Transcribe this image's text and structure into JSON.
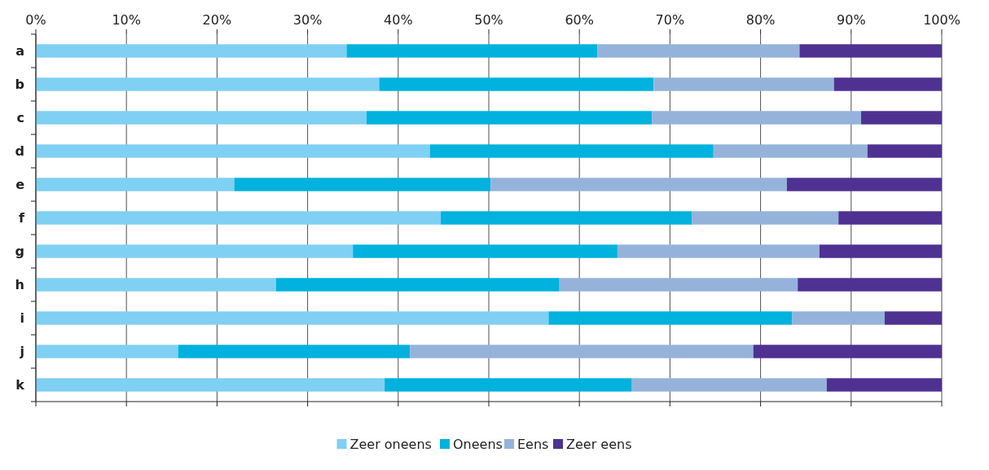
{
  "chart_data": {
    "type": "bar",
    "orientation": "horizontal",
    "stacked": true,
    "categories": [
      "a",
      "b",
      "c",
      "d",
      "e",
      "f",
      "g",
      "h",
      "i",
      "j",
      "k"
    ],
    "series": [
      {
        "name": "Zeer oneens",
        "color": "#7fd0f3",
        "values": [
          34.3,
          37.9,
          36.5,
          43.5,
          21.9,
          44.7,
          35.0,
          26.5,
          56.6,
          15.7,
          38.5
        ]
      },
      {
        "name": "Oneens",
        "color": "#00b2dd",
        "values": [
          27.7,
          30.3,
          31.5,
          31.3,
          28.3,
          27.7,
          29.2,
          31.3,
          26.9,
          25.6,
          27.3
        ]
      },
      {
        "name": "Eens",
        "color": "#95b3da",
        "values": [
          22.3,
          19.9,
          23.1,
          17.0,
          32.7,
          16.2,
          22.3,
          26.3,
          10.2,
          37.9,
          21.5
        ]
      },
      {
        "name": "Zeer eens",
        "color": "#4f3192",
        "values": [
          15.7,
          11.9,
          8.9,
          8.2,
          17.1,
          11.4,
          13.5,
          15.9,
          6.3,
          20.8,
          12.7
        ]
      }
    ],
    "xlim": [
      0,
      100
    ],
    "xticks": [
      {
        "value": 0,
        "label": "0%"
      },
      {
        "value": 10,
        "label": "10%"
      },
      {
        "value": 20,
        "label": "20%"
      },
      {
        "value": 30,
        "label": "30%"
      },
      {
        "value": 40,
        "label": "40%"
      },
      {
        "value": 50,
        "label": "50%"
      },
      {
        "value": 60,
        "label": "60%"
      },
      {
        "value": 70,
        "label": "70%"
      },
      {
        "value": 80,
        "label": "80%"
      },
      {
        "value": 90,
        "label": "90%"
      },
      {
        "value": 100,
        "label": "100%"
      }
    ],
    "grid": "x",
    "legend": "bottom"
  }
}
